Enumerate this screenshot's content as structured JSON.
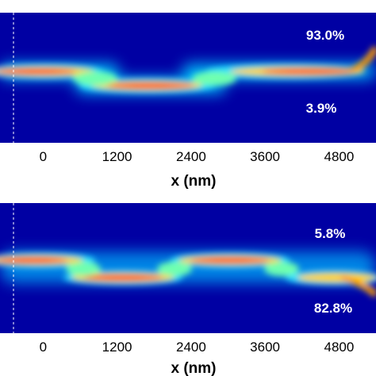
{
  "chart_data": [
    {
      "type": "heatmap",
      "description_of_quantity": "field intensity map along propagation",
      "xlabel": "x (nm)",
      "xticks": [
        0,
        1200,
        2400,
        3600,
        4800
      ],
      "xlim": [
        -700,
        5400
      ],
      "reference_line_x": 0,
      "colormap": "jet",
      "annotations": [
        {
          "text": "93.0%",
          "port": "upper output"
        },
        {
          "text": "3.9%",
          "port": "lower output"
        }
      ]
    },
    {
      "type": "heatmap",
      "description_of_quantity": "field intensity map along propagation",
      "xlabel": "x (nm)",
      "xticks": [
        0,
        1200,
        2400,
        3600,
        4800
      ],
      "xlim": [
        -700,
        5400
      ],
      "reference_line_x": 0,
      "colormap": "jet",
      "annotations": [
        {
          "text": "5.8%",
          "port": "upper output"
        },
        {
          "text": "82.8%",
          "port": "lower output"
        }
      ]
    }
  ]
}
